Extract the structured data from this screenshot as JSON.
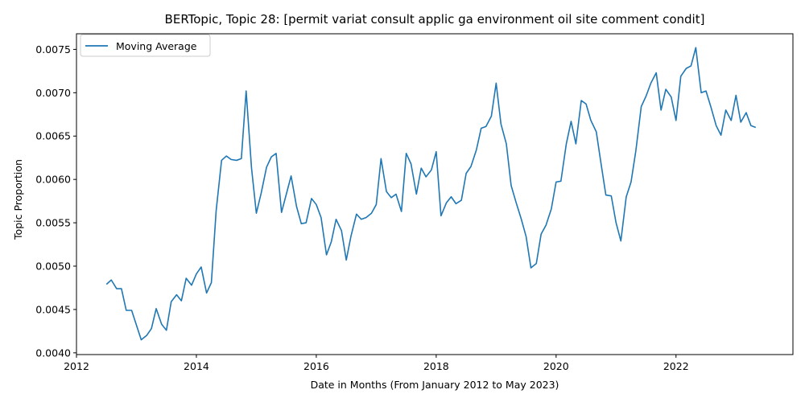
{
  "chart_data": {
    "type": "line",
    "title": "BERTopic, Topic 28: [permit variat consult applic ga environment oil site comment condit]",
    "xlabel": "Date in Months (From January 2012 to May 2023)",
    "ylabel": "Topic Proportion",
    "x_tick_labels": [
      "2012",
      "2014",
      "2016",
      "2018",
      "2020",
      "2022"
    ],
    "x_tick_values": [
      2012,
      2014,
      2016,
      2018,
      2020,
      2022
    ],
    "y_tick_labels": [
      "0.0040",
      "0.0045",
      "0.0050",
      "0.0055",
      "0.0060",
      "0.0065",
      "0.0070",
      "0.0075"
    ],
    "y_tick_values": [
      0.004,
      0.0045,
      0.005,
      0.0055,
      0.006,
      0.0065,
      0.007,
      0.0075
    ],
    "xlim": [
      2012.0,
      2023.95
    ],
    "ylim": [
      0.00398,
      0.00768
    ],
    "grid": false,
    "legend_position": "top-left",
    "color": "#1f77b4",
    "series": [
      {
        "name": "Moving Average",
        "x": [
          2012.5,
          2012.58,
          2012.67,
          2012.75,
          2012.83,
          2012.92,
          2013.0,
          2013.08,
          2013.17,
          2013.25,
          2013.33,
          2013.42,
          2013.5,
          2013.58,
          2013.67,
          2013.75,
          2013.83,
          2013.92,
          2014.0,
          2014.08,
          2014.17,
          2014.25,
          2014.33,
          2014.42,
          2014.5,
          2014.58,
          2014.67,
          2014.75,
          2014.83,
          2014.92,
          2015.0,
          2015.08,
          2015.17,
          2015.25,
          2015.33,
          2015.42,
          2015.5,
          2015.58,
          2015.67,
          2015.75,
          2015.83,
          2015.92,
          2016.0,
          2016.08,
          2016.17,
          2016.25,
          2016.33,
          2016.42,
          2016.5,
          2016.58,
          2016.67,
          2016.75,
          2016.83,
          2016.92,
          2017.0,
          2017.08,
          2017.17,
          2017.25,
          2017.33,
          2017.42,
          2017.5,
          2017.58,
          2017.67,
          2017.75,
          2017.83,
          2017.92,
          2018.0,
          2018.08,
          2018.17,
          2018.25,
          2018.33,
          2018.42,
          2018.5,
          2018.58,
          2018.67,
          2018.75,
          2018.83,
          2018.92,
          2019.0,
          2019.08,
          2019.17,
          2019.25,
          2019.33,
          2019.42,
          2019.5,
          2019.58,
          2019.67,
          2019.75,
          2019.83,
          2019.92,
          2020.0,
          2020.08,
          2020.17,
          2020.25,
          2020.33,
          2020.42,
          2020.5,
          2020.58,
          2020.67,
          2020.75,
          2020.83,
          2020.92,
          2021.0,
          2021.08,
          2021.17,
          2021.25,
          2021.33,
          2021.42,
          2021.5,
          2021.58,
          2021.67,
          2021.75,
          2021.83,
          2021.92,
          2022.0,
          2022.08,
          2022.17,
          2022.25,
          2022.33,
          2022.42,
          2022.5,
          2022.58,
          2022.67,
          2022.75,
          2022.83,
          2022.92,
          2023.0,
          2023.08,
          2023.17,
          2023.25,
          2023.33
        ],
        "y": [
          0.00479,
          0.00484,
          0.00474,
          0.00474,
          0.00449,
          0.00449,
          0.00432,
          0.00415,
          0.0042,
          0.00428,
          0.00451,
          0.00433,
          0.00426,
          0.00459,
          0.00467,
          0.0046,
          0.00486,
          0.00478,
          0.00491,
          0.00499,
          0.00469,
          0.00481,
          0.00564,
          0.00622,
          0.00627,
          0.00623,
          0.00622,
          0.00624,
          0.00702,
          0.00613,
          0.00561,
          0.00584,
          0.00614,
          0.00626,
          0.0063,
          0.00562,
          0.00583,
          0.00604,
          0.00569,
          0.00549,
          0.0055,
          0.00578,
          0.00571,
          0.00556,
          0.00513,
          0.00528,
          0.00554,
          0.00541,
          0.00507,
          0.00535,
          0.0056,
          0.00554,
          0.00556,
          0.00561,
          0.00571,
          0.00624,
          0.00586,
          0.00579,
          0.00583,
          0.00563,
          0.0063,
          0.00618,
          0.00583,
          0.00613,
          0.00603,
          0.00611,
          0.00632,
          0.00558,
          0.00573,
          0.0058,
          0.00572,
          0.00576,
          0.00607,
          0.00615,
          0.00634,
          0.00659,
          0.00661,
          0.00673,
          0.00711,
          0.00664,
          0.00641,
          0.00593,
          0.00574,
          0.00554,
          0.00534,
          0.00498,
          0.00503,
          0.00537,
          0.00547,
          0.00566,
          0.00597,
          0.00598,
          0.00641,
          0.00667,
          0.00641,
          0.00691,
          0.00687,
          0.00668,
          0.00655,
          0.00618,
          0.00582,
          0.00581,
          0.0055,
          0.00529,
          0.0058,
          0.00597,
          0.00633,
          0.00684,
          0.00696,
          0.00711,
          0.00723,
          0.0068,
          0.00704,
          0.00695,
          0.00668,
          0.00719,
          0.00728,
          0.00731,
          0.00752,
          0.007,
          0.00702,
          0.00684,
          0.00662,
          0.00651,
          0.0068,
          0.00668,
          0.00697,
          0.00666,
          0.00677,
          0.00662,
          0.0066
        ]
      }
    ]
  }
}
